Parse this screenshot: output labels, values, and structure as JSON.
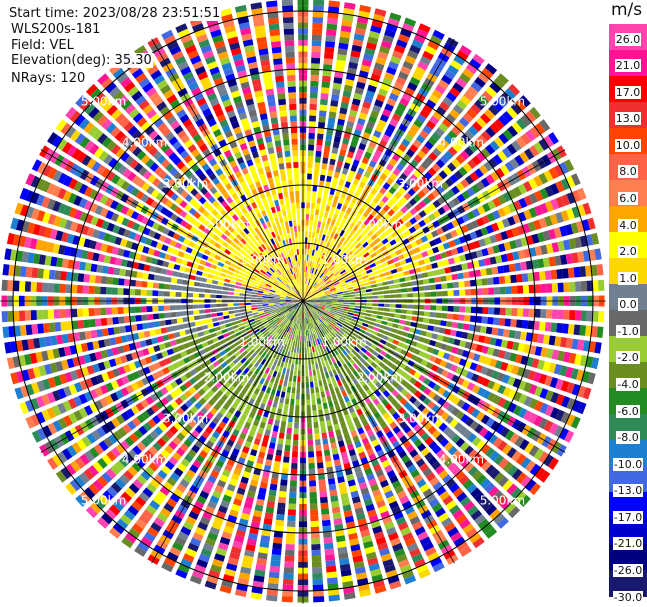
{
  "header": {
    "start_time": "Start time: 2023/08/28 23:51:51",
    "instrument": "WLS200s-181",
    "field": "Field: VEL",
    "elevation": "Elevation(deg): 35.30",
    "nrays": "NRays: 120"
  },
  "colorbar": {
    "unit": "m/s",
    "ticks": [
      "26.0",
      "21.0",
      "17.0",
      "13.0",
      "10.0",
      "8.0",
      "6.0",
      "4.0",
      "2.0",
      "1.0",
      "0.0",
      "-1.0",
      "-2.0",
      "-4.0",
      "-6.0",
      "-8.0",
      "-10.0",
      "-13.0",
      "-17.0",
      "-21.0",
      "-26.0",
      "-30.0"
    ],
    "colors": [
      "#ff44b0",
      "#ff1493",
      "#ff0000",
      "#f03030",
      "#ff4500",
      "#ff6347",
      "#ff7f50",
      "#ffa500",
      "#ffff00",
      "#ffd700",
      "#708090",
      "#696969",
      "#9acd32",
      "#6b8e23",
      "#228b22",
      "#2e8b57",
      "#1e7fd0",
      "#4169e1",
      "#0000ff",
      "#0000cd",
      "#000080",
      "#191970"
    ]
  },
  "chart_data": {
    "type": "heatmap",
    "projection": "polar (PPI)",
    "field": "VEL",
    "unit": "m/s",
    "n_rays": 120,
    "value_range": [
      -30,
      30
    ],
    "range_rings_km": [
      1,
      2,
      3,
      4,
      5
    ],
    "ring_labels": [
      "1.00km",
      "2.00km",
      "3.00km",
      "4.00km",
      "5.00km"
    ],
    "radial_lines_deg": [
      0,
      30,
      60,
      90,
      120,
      150,
      180,
      210,
      240,
      270,
      300,
      330
    ],
    "pattern": {
      "inner_north": "2 to 6 m/s (yellow/orange)",
      "inner_south": "-1 to -4 m/s (olive/green)",
      "inner_west": "0 to 1 m/s (grey)",
      "outer": "noise spanning full -30 to 30 m/s"
    }
  }
}
